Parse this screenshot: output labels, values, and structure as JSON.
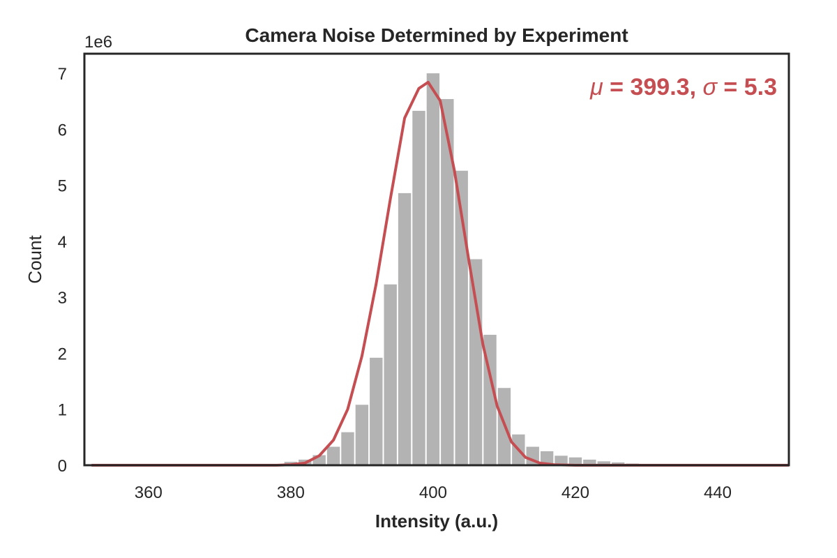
{
  "chart_data": {
    "type": "bar",
    "title": "Camera Noise Determined by Experiment",
    "xlabel": "Intensity (a.u.)",
    "ylabel": "Count",
    "y_multiplier_label": "1e6",
    "xlim": [
      351,
      450
    ],
    "ylim": [
      0,
      7.35
    ],
    "xticks": [
      360,
      380,
      400,
      420,
      440
    ],
    "yticks": [
      0,
      1,
      2,
      3,
      4,
      5,
      6,
      7
    ],
    "grid": false,
    "bar_color": "#b3b3b3",
    "bars": {
      "x_start": [
        351,
        353,
        355,
        357,
        359,
        361,
        363,
        365,
        367,
        369,
        371,
        373,
        375,
        377,
        379,
        381,
        383,
        385,
        387,
        389,
        391,
        393,
        395,
        397,
        399,
        401,
        403,
        405,
        407,
        409,
        411,
        413,
        415,
        417,
        419,
        421,
        423,
        425,
        427,
        429,
        431,
        433,
        435,
        437,
        439,
        441,
        443,
        445,
        447
      ],
      "width": 2,
      "values": [
        0.01,
        0.01,
        0.01,
        0.01,
        0.01,
        0.01,
        0.01,
        0.01,
        0.01,
        0.01,
        0.01,
        0.01,
        0.01,
        0.02,
        0.06,
        0.1,
        0.18,
        0.33,
        0.59,
        1.08,
        1.92,
        3.23,
        4.86,
        6.33,
        7.0,
        6.54,
        5.26,
        3.68,
        2.33,
        1.38,
        0.55,
        0.33,
        0.25,
        0.17,
        0.14,
        0.1,
        0.07,
        0.05,
        0.03,
        0.02,
        0.02,
        0.02,
        0.01,
        0.01,
        0.01,
        0.01,
        0.01,
        0.01,
        0.01
      ]
    },
    "fit_line": {
      "color": "#c44e52",
      "x": [
        352,
        360,
        370,
        378,
        380,
        382,
        384,
        386,
        388,
        390,
        392,
        394,
        396,
        398,
        399.3,
        401,
        403,
        405,
        407,
        409,
        411,
        413,
        415,
        417,
        420,
        430,
        440,
        450
      ],
      "y": [
        0.0,
        0.0,
        0.0,
        0.0,
        0.01,
        0.04,
        0.17,
        0.45,
        1.0,
        1.95,
        3.24,
        4.76,
        6.2,
        6.73,
        6.84,
        6.51,
        5.26,
        3.68,
        2.16,
        1.06,
        0.42,
        0.14,
        0.04,
        0.01,
        0.0,
        0.0,
        0.0,
        0.0
      ]
    },
    "annotation": {
      "mu_symbol": "μ",
      "mu_rest": " = 399.3, ",
      "sigma_symbol": "σ",
      "sigma_rest": " = 5.3",
      "color": "#c44e52",
      "placement": "top-right"
    }
  }
}
